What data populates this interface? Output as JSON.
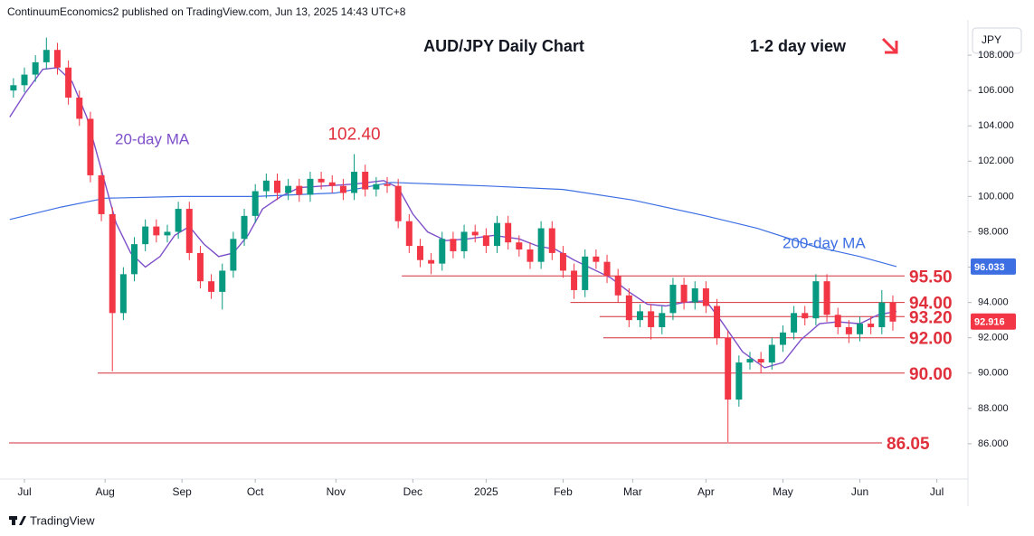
{
  "header": "ContinuumEconomics2 published on TradingView.com, Jun 13, 2025 14:43 UTC+8",
  "footer": "TradingView",
  "chart_data": {
    "type": "candlestick",
    "title": "AUD/JPY Daily Chart",
    "subtitle": "1-2 day view",
    "currency": "JPY",
    "x": [
      -3,
      0,
      3,
      6,
      9,
      12,
      15,
      18,
      21,
      24,
      27,
      30,
      33,
      36,
      39,
      42,
      45,
      48,
      51,
      54,
      57,
      60,
      63,
      66,
      69,
      72,
      75,
      78,
      81,
      84,
      87,
      90,
      93,
      96,
      99,
      102,
      105,
      108,
      111,
      114,
      117,
      120,
      123,
      126,
      129,
      132,
      135,
      138,
      141,
      144,
      147,
      150,
      153,
      156,
      159,
      162,
      165,
      168,
      171,
      174,
      177,
      180,
      183,
      186,
      189,
      192,
      195,
      198,
      201,
      204,
      207,
      210,
      213,
      216,
      219,
      222,
      225,
      228,
      231,
      234,
      237
    ],
    "open": [
      106.0,
      106.3,
      106.9,
      107.6,
      108.3,
      107.3,
      105.6,
      104.4,
      101.2,
      99.0,
      93.4,
      95.6,
      97.3,
      98.3,
      97.8,
      98.0,
      99.3,
      96.8,
      95.2,
      94.6,
      95.8,
      97.6,
      98.9,
      100.3,
      100.9,
      100.2,
      100.6,
      100.1,
      101.0,
      100.8,
      100.6,
      100.2,
      101.4,
      100.4,
      100.7,
      100.6,
      98.6,
      97.2,
      96.4,
      96.2,
      97.6,
      96.9,
      98.0,
      97.8,
      97.2,
      98.5,
      97.4,
      97.0,
      96.3,
      98.2,
      96.8,
      95.8,
      94.7,
      96.6,
      96.3,
      95.5,
      94.4,
      93.0,
      93.5,
      92.6,
      93.4,
      95.0,
      94.0,
      94.8,
      93.8,
      92.0,
      88.5,
      90.6,
      90.8,
      90.6,
      91.6,
      92.3,
      93.4,
      93.1,
      95.2,
      93.3,
      92.6,
      92.2,
      92.8,
      92.6,
      94.0
    ],
    "high": [
      106.7,
      107.3,
      108.0,
      109.0,
      108.7,
      107.7,
      106.0,
      104.8,
      101.6,
      99.4,
      96.0,
      97.7,
      98.7,
      98.7,
      98.4,
      99.7,
      99.7,
      97.2,
      95.6,
      96.2,
      98.0,
      99.3,
      100.7,
      101.3,
      101.3,
      101.0,
      101.0,
      101.4,
      101.4,
      101.2,
      101.0,
      102.4,
      101.8,
      101.1,
      101.1,
      101.0,
      99.0,
      97.6,
      96.8,
      98.0,
      98.0,
      98.4,
      98.4,
      98.2,
      98.9,
      98.9,
      97.8,
      97.4,
      98.6,
      98.6,
      97.2,
      96.2,
      97.0,
      97.0,
      96.7,
      95.9,
      94.8,
      93.9,
      93.9,
      93.8,
      95.4,
      95.4,
      95.2,
      95.2,
      94.2,
      92.4,
      91.0,
      91.2,
      91.2,
      92.0,
      92.7,
      93.8,
      93.8,
      95.6,
      95.6,
      93.7,
      93.0,
      93.2,
      93.2,
      94.7,
      94.4
    ],
    "low": [
      105.6,
      105.9,
      106.5,
      107.2,
      106.9,
      105.2,
      104.0,
      100.8,
      98.6,
      90.1,
      93.0,
      95.2,
      96.9,
      97.4,
      97.4,
      97.6,
      96.4,
      94.8,
      94.2,
      93.6,
      95.4,
      97.2,
      98.5,
      99.9,
      99.8,
      99.8,
      99.7,
      99.7,
      100.4,
      100.2,
      99.8,
      99.8,
      100.0,
      100.0,
      100.2,
      98.2,
      96.8,
      96.0,
      95.6,
      95.8,
      96.5,
      96.5,
      97.4,
      96.8,
      96.8,
      97.0,
      96.6,
      95.9,
      95.9,
      96.4,
      95.4,
      94.2,
      94.3,
      95.9,
      95.1,
      94.0,
      92.6,
      92.6,
      91.9,
      92.2,
      93.0,
      93.6,
      93.6,
      93.4,
      91.6,
      86.1,
      88.1,
      90.2,
      90.0,
      90.2,
      91.2,
      91.9,
      92.7,
      92.7,
      92.9,
      92.2,
      91.7,
      91.8,
      92.2,
      92.2,
      92.4
    ],
    "close": [
      106.3,
      106.9,
      107.6,
      108.3,
      107.3,
      105.6,
      104.4,
      101.2,
      99.0,
      93.4,
      95.6,
      97.3,
      98.3,
      97.8,
      98.0,
      99.3,
      96.8,
      95.2,
      94.6,
      95.8,
      97.6,
      98.9,
      100.3,
      100.9,
      100.2,
      100.6,
      100.1,
      101.0,
      100.8,
      100.6,
      100.2,
      101.4,
      100.4,
      100.7,
      100.6,
      98.6,
      97.2,
      96.4,
      96.2,
      97.6,
      96.9,
      98.0,
      97.8,
      97.2,
      98.5,
      97.4,
      97.0,
      96.3,
      98.2,
      96.8,
      95.8,
      94.7,
      96.6,
      96.3,
      95.5,
      94.4,
      93.0,
      93.5,
      92.6,
      93.4,
      95.0,
      94.0,
      94.8,
      93.8,
      92.0,
      88.5,
      90.6,
      90.8,
      90.6,
      91.6,
      92.3,
      93.4,
      93.1,
      95.2,
      93.3,
      92.6,
      92.2,
      92.8,
      92.6,
      94.0,
      92.916
    ],
    "up_color": "#089981",
    "down_color": "#f23645",
    "series": [
      {
        "name": "20-day MA",
        "color": "#7e4fc9",
        "x": [
          -4,
          0,
          5,
          9,
          13,
          17,
          21,
          25,
          29,
          33,
          37,
          41,
          45,
          49,
          53,
          57,
          61,
          65,
          70,
          75,
          82,
          90,
          98,
          102,
          106,
          110,
          115,
          121,
          128,
          135,
          140,
          145,
          150,
          155,
          160,
          165,
          170,
          175,
          180,
          186,
          190,
          196,
          202,
          207,
          212,
          217,
          222,
          228,
          233,
          238
        ],
        "values": [
          104.5,
          105.8,
          107.2,
          107.3,
          106.5,
          104.5,
          101.5,
          98.5,
          96.8,
          96.0,
          96.6,
          97.8,
          98.3,
          97.3,
          96.6,
          96.8,
          97.8,
          99.3,
          100.0,
          100.5,
          100.6,
          100.7,
          100.9,
          100.5,
          99.0,
          98.0,
          97.5,
          97.6,
          97.8,
          97.6,
          97.2,
          97.0,
          96.4,
          95.9,
          95.4,
          94.6,
          93.9,
          93.8,
          94.0,
          94.1,
          93.0,
          91.2,
          90.3,
          90.6,
          91.9,
          92.8,
          92.9,
          92.8,
          93.3,
          93.5
        ]
      },
      {
        "name": "200-day MA",
        "color": "#3d6fe3",
        "x": [
          -4,
          10,
          22,
          43,
          63,
          85,
          100,
          126,
          147,
          166,
          186,
          200,
          215,
          228,
          238
        ],
        "values": [
          98.7,
          99.4,
          99.9,
          100.0,
          100.0,
          100.2,
          100.8,
          100.6,
          100.4,
          99.8,
          98.9,
          98.2,
          97.2,
          96.6,
          96.033
        ]
      }
    ],
    "levels": [
      {
        "value": 95.5,
        "label": "95.50",
        "start": 103
      },
      {
        "value": 94,
        "label": "94.00",
        "start": 149
      },
      {
        "value": 93.2,
        "label": "93.20",
        "start": 157
      },
      {
        "value": 92,
        "label": "92.00",
        "start": 158
      },
      {
        "value": 90,
        "label": "90.00",
        "start": 20
      },
      {
        "value": 86.05,
        "label": "86.05",
        "start": -4.2
      }
    ],
    "level_color": "#d32f3a",
    "annotations": [
      {
        "value": 102.4,
        "label": "102.40",
        "x": 90
      }
    ],
    "xlim": [
      -4.2,
      257.5
    ],
    "xticks": [
      {
        "value": 0,
        "label": "Jul"
      },
      {
        "value": 22,
        "label": "Aug"
      },
      {
        "value": 43,
        "label": "Sep"
      },
      {
        "value": 63,
        "label": "Oct"
      },
      {
        "value": 85,
        "label": "Nov"
      },
      {
        "value": 106,
        "label": "Dec"
      },
      {
        "value": 126,
        "label": "2025"
      },
      {
        "value": 147,
        "label": "Feb"
      },
      {
        "value": 166,
        "label": "Mar"
      },
      {
        "value": 186,
        "label": "Apr"
      },
      {
        "value": 207,
        "label": "May"
      },
      {
        "value": 228,
        "label": "Jun"
      },
      {
        "value": 249,
        "label": "Jul"
      }
    ],
    "ylim": [
      84,
      110
    ],
    "yticks": [
      {
        "value": 86,
        "label": "86.000"
      },
      {
        "value": 88,
        "label": "88.000"
      },
      {
        "value": 90,
        "label": "90.000"
      },
      {
        "value": 92,
        "label": "92.000"
      },
      {
        "value": 94,
        "label": "94.000"
      },
      {
        "value": 96,
        "label": "96.000"
      },
      {
        "value": 98,
        "label": "98.000"
      },
      {
        "value": 100,
        "label": "100.000"
      },
      {
        "value": 102,
        "label": "102.000"
      },
      {
        "value": 104,
        "label": "104.000"
      },
      {
        "value": 106,
        "label": "106.000"
      },
      {
        "value": 108,
        "label": "108.000"
      }
    ]
  }
}
